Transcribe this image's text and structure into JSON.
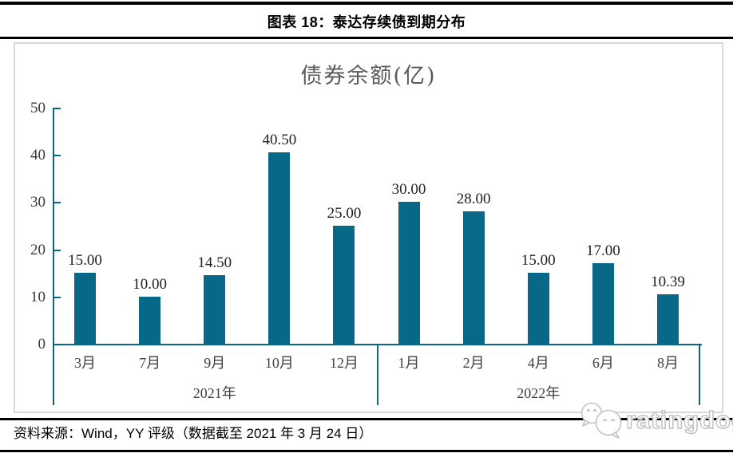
{
  "figure": {
    "title": "图表 18：泰达存续债到期分布",
    "source": "资料来源：Wind，YY 评级（数据截至 2021 年 3 月 24 日）",
    "watermark": "ratingdog"
  },
  "chart_data": {
    "type": "bar",
    "title": "债券余额(亿)",
    "categories": [
      "3月",
      "7月",
      "9月",
      "10月",
      "12月",
      "1月",
      "2月",
      "4月",
      "6月",
      "8月"
    ],
    "values": [
      15.0,
      10.0,
      14.5,
      40.5,
      25.0,
      30.0,
      28.0,
      15.0,
      17.0,
      10.39
    ],
    "value_labels": [
      "15.00",
      "10.00",
      "14.50",
      "40.50",
      "25.00",
      "30.00",
      "28.00",
      "15.00",
      "17.00",
      "10.39"
    ],
    "groups": [
      {
        "label": "2021年",
        "start": 0,
        "end": 4
      },
      {
        "label": "2022年",
        "start": 5,
        "end": 9
      }
    ],
    "ylim": [
      0,
      50
    ],
    "yticks": [
      0,
      10,
      20,
      30,
      40,
      50
    ],
    "bar_color": "#086887",
    "axis_color": "#086887",
    "grid": false,
    "legend": false,
    "xlabel": "",
    "ylabel": ""
  }
}
